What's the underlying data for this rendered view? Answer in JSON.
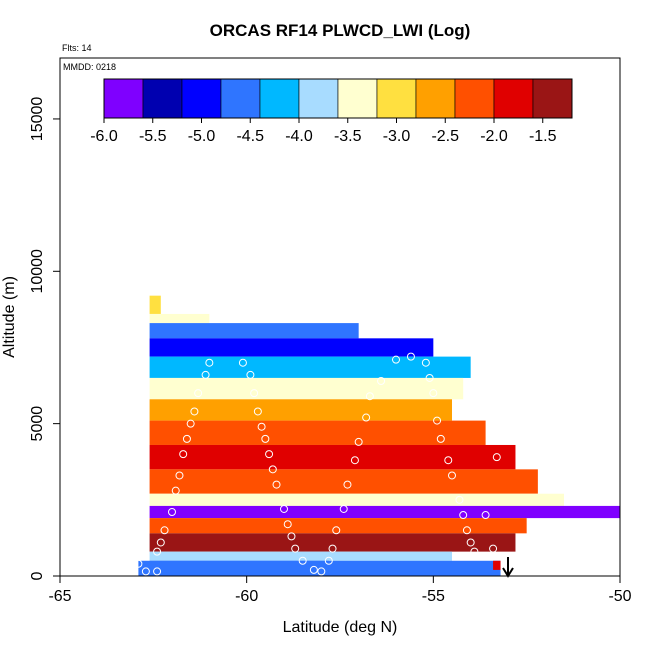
{
  "chart_data": {
    "type": "heatmap",
    "title": "ORCAS RF14 PLWCD_LWI (Log)",
    "flights_note": "Flts: 14",
    "date_note": "MMDD: 0218",
    "xlabel": "Latitude (deg N)",
    "ylabel": "Altitude (m)",
    "xlim": [
      -65,
      -50
    ],
    "ylim": [
      0,
      17000
    ],
    "xticks": [
      -65,
      -60,
      -55,
      -50
    ],
    "yticks": [
      0,
      5000,
      10000,
      15000
    ],
    "colorbar": {
      "min": -6.0,
      "max": -1.2,
      "ticks": [
        -6.0,
        -5.5,
        -5.0,
        -4.5,
        -4.0,
        -3.5,
        -3.0,
        -2.5,
        -2.0,
        -1.5
      ],
      "tick_labels": [
        "-6.0",
        "-5.5",
        "-5.0",
        "-4.5",
        "-4.0",
        "-3.5",
        "-3.0",
        "-2.5",
        "-2.0",
        "-1.5"
      ],
      "colors": [
        "#7f00ff",
        "#0000b0",
        "#0000ff",
        "#2f75ff",
        "#00b8ff",
        "#a8dcff",
        "#ffffd0",
        "#ffe040",
        "#ffa000",
        "#ff5000",
        "#e00000",
        "#9a1515"
      ]
    },
    "layers": [
      {
        "alt_top": 9200,
        "alt_bot": 8600,
        "lat_end": -62.3,
        "value": -3.2
      },
      {
        "alt_top": 8600,
        "alt_bot": 8300,
        "lat_end": -61.0,
        "value": -3.6
      },
      {
        "alt_top": 8300,
        "alt_bot": 7800,
        "lat_end": -57.0,
        "value": -4.6
      },
      {
        "alt_top": 7800,
        "alt_bot": 7200,
        "lat_end": -55.0,
        "value": -5.0
      },
      {
        "alt_top": 7200,
        "alt_bot": 6500,
        "lat_end": -54.0,
        "value": -4.2
      },
      {
        "alt_top": 6500,
        "alt_bot": 5800,
        "lat_end": -54.2,
        "value": -3.5
      },
      {
        "alt_top": 5800,
        "alt_bot": 5100,
        "lat_end": -54.5,
        "value": -2.6
      },
      {
        "alt_top": 5100,
        "alt_bot": 4300,
        "lat_end": -53.6,
        "value": -2.2
      },
      {
        "alt_top": 4300,
        "alt_bot": 3500,
        "lat_end": -52.8,
        "value": -2.0
      },
      {
        "alt_top": 3500,
        "alt_bot": 2700,
        "lat_end": -52.2,
        "value": -2.4
      },
      {
        "alt_top": 2700,
        "alt_bot": 2300,
        "lat_end": -51.5,
        "value": -3.4
      },
      {
        "alt_top": 2300,
        "alt_bot": 1900,
        "lat_end": -50.0,
        "value": -5.8
      },
      {
        "alt_top": 1900,
        "alt_bot": 1400,
        "lat_end": -52.5,
        "value": -2.1
      },
      {
        "alt_top": 1400,
        "alt_bot": 800,
        "lat_end": -52.8,
        "value": -1.6
      },
      {
        "alt_top": 800,
        "alt_bot": 500,
        "lat_end": -54.5,
        "value": -3.8
      },
      {
        "alt_top": 500,
        "alt_bot": 0,
        "lat_end": -53.2,
        "value": -4.5
      }
    ],
    "flight_track": [
      [
        -62.9,
        400
      ],
      [
        -62.7,
        150
      ],
      [
        -62.4,
        150
      ],
      [
        -62.4,
        800
      ],
      [
        -62.3,
        1100
      ],
      [
        -62.2,
        1500
      ],
      [
        -62.0,
        2100
      ],
      [
        -61.9,
        2800
      ],
      [
        -61.8,
        3300
      ],
      [
        -61.7,
        4000
      ],
      [
        -61.6,
        4500
      ],
      [
        -61.5,
        5000
      ],
      [
        -61.4,
        5400
      ],
      [
        -61.3,
        6000
      ],
      [
        -61.1,
        6600
      ],
      [
        -61.0,
        7000
      ],
      [
        -60.1,
        7000
      ],
      [
        -59.9,
        6600
      ],
      [
        -59.8,
        6000
      ],
      [
        -59.7,
        5400
      ],
      [
        -59.6,
        4900
      ],
      [
        -59.5,
        4500
      ],
      [
        -59.4,
        4000
      ],
      [
        -59.3,
        3500
      ],
      [
        -59.2,
        3000
      ],
      [
        -59.0,
        2200
      ],
      [
        -58.9,
        1700
      ],
      [
        -58.8,
        1300
      ],
      [
        -58.7,
        900
      ],
      [
        -58.5,
        500
      ],
      [
        -58.2,
        200
      ],
      [
        -58.0,
        150
      ],
      [
        -57.8,
        500
      ],
      [
        -57.7,
        900
      ],
      [
        -57.6,
        1500
      ],
      [
        -57.4,
        2200
      ],
      [
        -57.3,
        3000
      ],
      [
        -57.1,
        3800
      ],
      [
        -57.0,
        4400
      ],
      [
        -56.8,
        5200
      ],
      [
        -56.7,
        5900
      ],
      [
        -56.4,
        6400
      ],
      [
        -56.0,
        7100
      ],
      [
        -55.6,
        7200
      ],
      [
        -55.2,
        7000
      ],
      [
        -55.1,
        6500
      ],
      [
        -55.0,
        6000
      ],
      [
        -54.9,
        5100
      ],
      [
        -54.8,
        4500
      ],
      [
        -54.6,
        3800
      ],
      [
        -54.5,
        3300
      ],
      [
        -54.3,
        2500
      ],
      [
        -54.2,
        2000
      ],
      [
        -54.1,
        1500
      ],
      [
        -54.0,
        1100
      ],
      [
        -53.9,
        800
      ],
      [
        -53.4,
        900
      ],
      [
        -53.6,
        2000
      ],
      [
        -53.3,
        3900
      ],
      [
        -53.4,
        4900
      ]
    ],
    "arrow_lat": -53.0
  }
}
